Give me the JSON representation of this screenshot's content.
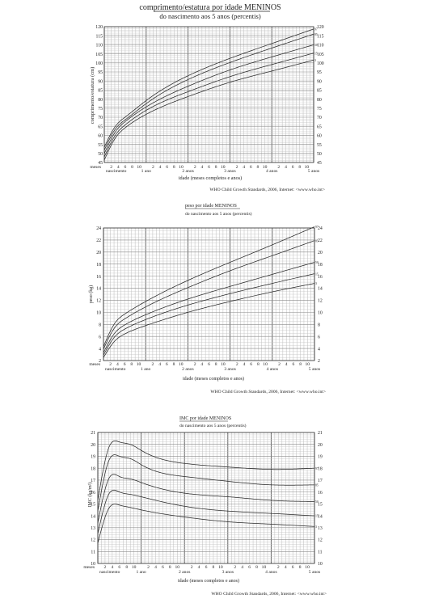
{
  "chart_data": [
    {
      "type": "line",
      "title": "comprimento/estatura por idade MENINOS",
      "subtitle": "do nascimento aos 5 anos (percentis)",
      "ylabel": "comprimento/estatura (cm)",
      "xlabel": "idade (meses completos e anos)",
      "source": "WHO Child Growth Standards, 2006, Internet: <www.who.int>",
      "ylim": [
        45,
        120
      ],
      "ytick_labels": [
        "45",
        "50",
        "55",
        "60",
        "65",
        "70",
        "75",
        "80",
        "85",
        "90",
        "95",
        "100",
        "105",
        "110",
        "115",
        "120"
      ],
      "x_units": "months",
      "xlim": [
        0,
        60
      ],
      "month_tick_labels": [
        "2",
        "4",
        "6",
        "8",
        "10"
      ],
      "year_labels": [
        "1 ano",
        "2 anos",
        "3 anos",
        "4 anos",
        "5 anos"
      ],
      "start_labels": [
        "meses",
        "nascimento"
      ],
      "x": [
        0,
        3,
        6,
        12,
        24,
        36,
        48,
        60
      ],
      "series": [
        {
          "name": "97",
          "values": [
            53.4,
            64.5,
            70.1,
            79.2,
            92.9,
            102.5,
            110.7,
            118.7
          ]
        },
        {
          "name": "85",
          "values": [
            51.8,
            63.0,
            68.6,
            77.5,
            90.8,
            100.2,
            108.2,
            115.9
          ]
        },
        {
          "name": "50",
          "values": [
            49.9,
            61.4,
            67.6,
            75.7,
            87.1,
            96.1,
            103.3,
            110.0
          ]
        },
        {
          "name": "15",
          "values": [
            48.0,
            59.6,
            65.8,
            73.8,
            84.1,
            92.4,
            99.1,
            105.4
          ]
        },
        {
          "name": "3",
          "values": [
            46.3,
            58.0,
            64.2,
            71.6,
            81.4,
            89.3,
            95.5,
            101.6
          ]
        }
      ]
    },
    {
      "type": "line",
      "title": "peso por idade MENINOS",
      "subtitle": "do nascimento aos 5 anos (percentis)",
      "ylabel": "peso (kg)",
      "xlabel": "idade (meses completos e anos)",
      "source": "WHO Child Growth Standards, 2006, Internet: <www.who.int>",
      "ylim": [
        2,
        24
      ],
      "ytick_labels": [
        "2",
        "4",
        "6",
        "8",
        "10",
        "12",
        "14",
        "16",
        "18",
        "20",
        "22",
        "24"
      ],
      "x_units": "months",
      "xlim": [
        0,
        60
      ],
      "month_tick_labels": [
        "2",
        "4",
        "6",
        "8",
        "10"
      ],
      "year_labels": [
        "1 ano",
        "2 anos",
        "3 anos",
        "4 anos",
        "5 anos"
      ],
      "start_labels": [
        "meses",
        "nascimento"
      ],
      "x": [
        0,
        3,
        6,
        12,
        24,
        36,
        48,
        60
      ],
      "series": [
        {
          "name": "97",
          "values": [
            4.3,
            8.0,
            9.7,
            11.8,
            15.3,
            18.3,
            21.2,
            24.2
          ]
        },
        {
          "name": "85",
          "values": [
            3.9,
            7.3,
            8.9,
            10.9,
            14.1,
            16.9,
            19.4,
            21.9
          ]
        },
        {
          "name": "50",
          "values": [
            3.3,
            6.4,
            7.9,
            9.6,
            12.2,
            14.3,
            16.3,
            18.3
          ]
        },
        {
          "name": "15",
          "values": [
            2.9,
            5.8,
            7.2,
            8.8,
            11.2,
            13.1,
            14.8,
            16.4
          ]
        },
        {
          "name": "3",
          "values": [
            2.5,
            5.1,
            6.4,
            7.8,
            10.0,
            11.8,
            13.4,
            14.8
          ]
        }
      ]
    },
    {
      "type": "line",
      "title": "IMC por idade MENINOS",
      "subtitle": "do nascimento aos 5 anos (percentis)",
      "ylabel": "IMC (kg/m²)",
      "xlabel": "idade (meses completos e anos)",
      "source": "WHO Child Growth Standards, 2006, Internet: <www.who.int>",
      "ylim": [
        10,
        21
      ],
      "ytick_labels": [
        "10",
        "11",
        "12",
        "13",
        "14",
        "15",
        "16",
        "17",
        "18",
        "19",
        "20",
        "21"
      ],
      "x_units": "months",
      "xlim": [
        0,
        60
      ],
      "month_tick_labels": [
        "2",
        "4",
        "6",
        "8",
        "10"
      ],
      "year_labels": [
        "1 ano",
        "2 anos",
        "3 anos",
        "4 anos",
        "5 anos"
      ],
      "start_labels": [
        "meses",
        "nascimento"
      ],
      "x": [
        0,
        3,
        6,
        9,
        12,
        24,
        36,
        48,
        60
      ],
      "series": [
        {
          "name": "97",
          "values": [
            15.3,
            19.7,
            20.2,
            20.0,
            19.5,
            18.4,
            18.1,
            17.9,
            18.0
          ]
        },
        {
          "name": "85",
          "values": [
            14.4,
            18.6,
            19.0,
            18.8,
            18.3,
            17.3,
            16.9,
            16.6,
            16.6
          ]
        },
        {
          "name": "50",
          "values": [
            13.4,
            17.1,
            17.3,
            17.1,
            16.8,
            15.9,
            15.6,
            15.3,
            15.2
          ]
        },
        {
          "name": "15",
          "values": [
            12.5,
            15.8,
            16.0,
            15.8,
            15.6,
            14.8,
            14.4,
            14.2,
            14.0
          ]
        },
        {
          "name": "3",
          "values": [
            11.7,
            14.6,
            14.9,
            14.7,
            14.5,
            13.9,
            13.5,
            13.3,
            13.1
          ]
        }
      ]
    }
  ]
}
